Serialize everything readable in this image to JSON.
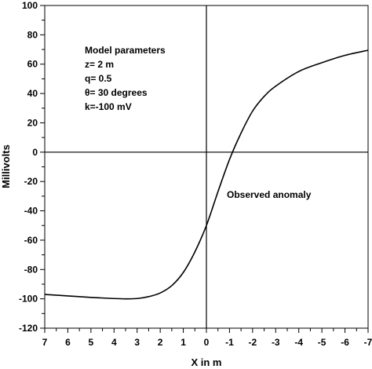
{
  "chart_data": {
    "type": "line",
    "xlabel": "X in m",
    "ylabel": "Millivolts",
    "xlim": [
      7,
      -7
    ],
    "ylim": [
      -120,
      100
    ],
    "x_ticks": [
      7,
      6,
      5,
      4,
      3,
      2,
      1,
      0,
      -1,
      -2,
      -3,
      -4,
      -5,
      -6,
      -7
    ],
    "y_ticks": [
      100,
      80,
      60,
      40,
      20,
      0,
      -20,
      -40,
      -60,
      -80,
      -100,
      -120
    ],
    "grid": false,
    "zero_lines": true,
    "series": [
      {
        "x": [
          7,
          6,
          5,
          4,
          3.5,
          3,
          2.5,
          2,
          1.5,
          1,
          0.5,
          0,
          -0.5,
          -1,
          -1.5,
          -2,
          -2.5,
          -3,
          -4,
          -5,
          -6,
          -7
        ],
        "y": [
          -97,
          -98,
          -99,
          -99.8,
          -100,
          -99.8,
          -98.5,
          -96,
          -91,
          -82,
          -68,
          -50,
          -27,
          -5,
          13,
          28,
          38,
          45,
          55,
          61,
          66,
          69.5
        ]
      }
    ],
    "annotations": {
      "parameters": [
        "Model parameters",
        "z= 2 m",
        "q= 0.5",
        "θ= 30 degrees",
        "k=-100 mV"
      ],
      "curve_label": "Observed anomaly"
    }
  }
}
